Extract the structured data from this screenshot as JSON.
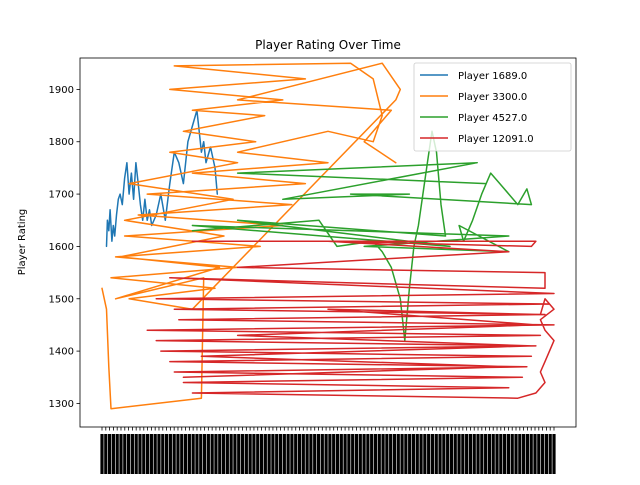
{
  "chart_data": {
    "type": "line",
    "title": "Player Rating Over Time",
    "xlabel": "",
    "ylabel": "Player Rating",
    "ylim": [
      1255,
      1960
    ],
    "yticks": [
      1300,
      1400,
      1500,
      1600,
      1700,
      1800,
      1900
    ],
    "x_tick_labels_legible": false,
    "legend": {
      "location": "upper right"
    },
    "grid": false,
    "series": [
      {
        "name": "Player 1689.0",
        "color": "#1f77b4",
        "points": [
          [
            0.01,
            1600
          ],
          [
            0.012,
            1650
          ],
          [
            0.015,
            1630
          ],
          [
            0.018,
            1670
          ],
          [
            0.022,
            1610
          ],
          [
            0.025,
            1640
          ],
          [
            0.028,
            1620
          ],
          [
            0.032,
            1660
          ],
          [
            0.036,
            1690
          ],
          [
            0.04,
            1700
          ],
          [
            0.045,
            1680
          ],
          [
            0.05,
            1730
          ],
          [
            0.055,
            1760
          ],
          [
            0.06,
            1700
          ],
          [
            0.065,
            1740
          ],
          [
            0.07,
            1690
          ],
          [
            0.075,
            1760
          ],
          [
            0.08,
            1720
          ],
          [
            0.085,
            1680
          ],
          [
            0.09,
            1650
          ],
          [
            0.095,
            1690
          ],
          [
            0.1,
            1650
          ],
          [
            0.105,
            1670
          ],
          [
            0.11,
            1640
          ],
          [
            0.12,
            1660
          ],
          [
            0.13,
            1700
          ],
          [
            0.14,
            1650
          ],
          [
            0.15,
            1720
          ],
          [
            0.16,
            1780
          ],
          [
            0.17,
            1760
          ],
          [
            0.18,
            1720
          ],
          [
            0.19,
            1800
          ],
          [
            0.2,
            1830
          ],
          [
            0.21,
            1860
          ],
          [
            0.215,
            1820
          ],
          [
            0.22,
            1780
          ],
          [
            0.225,
            1800
          ],
          [
            0.23,
            1760
          ],
          [
            0.24,
            1790
          ],
          [
            0.25,
            1750
          ],
          [
            0.255,
            1700
          ]
        ]
      },
      {
        "name": "Player 3300.0",
        "color": "#ff7f0e",
        "points": [
          [
            0.0,
            1520
          ],
          [
            0.01,
            1480
          ],
          [
            0.015,
            1370
          ],
          [
            0.02,
            1290
          ],
          [
            0.22,
            1310
          ],
          [
            0.225,
            1540
          ],
          [
            0.03,
            1500
          ],
          [
            0.26,
            1560
          ],
          [
            0.04,
            1580
          ],
          [
            0.27,
            1620
          ],
          [
            0.05,
            1650
          ],
          [
            0.29,
            1690
          ],
          [
            0.06,
            1720
          ],
          [
            0.3,
            1760
          ],
          [
            0.15,
            1780
          ],
          [
            0.34,
            1800
          ],
          [
            0.18,
            1820
          ],
          [
            0.36,
            1850
          ],
          [
            0.2,
            1860
          ],
          [
            0.4,
            1880
          ],
          [
            0.15,
            1900
          ],
          [
            0.45,
            1920
          ],
          [
            0.16,
            1945
          ],
          [
            0.55,
            1950
          ],
          [
            0.6,
            1920
          ],
          [
            0.62,
            1850
          ],
          [
            0.6,
            1800
          ],
          [
            0.5,
            1820
          ],
          [
            0.3,
            1780
          ],
          [
            0.5,
            1760
          ],
          [
            0.2,
            1740
          ],
          [
            0.45,
            1720
          ],
          [
            0.1,
            1700
          ],
          [
            0.42,
            1680
          ],
          [
            0.08,
            1660
          ],
          [
            0.4,
            1640
          ],
          [
            0.05,
            1620
          ],
          [
            0.35,
            1600
          ],
          [
            0.03,
            1580
          ],
          [
            0.3,
            1560
          ],
          [
            0.02,
            1540
          ],
          [
            0.25,
            1520
          ],
          [
            0.06,
            1500
          ],
          [
            0.2,
            1480
          ],
          [
            0.65,
            1880
          ],
          [
            0.66,
            1900
          ],
          [
            0.62,
            1950
          ],
          [
            0.3,
            1880
          ],
          [
            0.64,
            1860
          ],
          [
            0.58,
            1800
          ],
          [
            0.65,
            1760
          ]
        ]
      },
      {
        "name": "Player 4527.0",
        "color": "#2ca02c",
        "points": [
          [
            0.2,
            1630
          ],
          [
            0.48,
            1650
          ],
          [
            0.52,
            1600
          ],
          [
            0.6,
            1610
          ],
          [
            0.62,
            1590
          ],
          [
            0.64,
            1560
          ],
          [
            0.66,
            1500
          ],
          [
            0.67,
            1420
          ],
          [
            0.68,
            1520
          ],
          [
            0.69,
            1600
          ],
          [
            0.7,
            1640
          ],
          [
            0.71,
            1700
          ],
          [
            0.72,
            1760
          ],
          [
            0.73,
            1820
          ],
          [
            0.74,
            1780
          ],
          [
            0.75,
            1680
          ],
          [
            0.76,
            1620
          ],
          [
            0.3,
            1650
          ],
          [
            0.77,
            1600
          ],
          [
            0.2,
            1640
          ],
          [
            0.9,
            1620
          ],
          [
            0.58,
            1600
          ],
          [
            0.9,
            1590
          ],
          [
            0.79,
            1640
          ],
          [
            0.8,
            1610
          ],
          [
            0.82,
            1650
          ],
          [
            0.84,
            1700
          ],
          [
            0.86,
            1740
          ],
          [
            0.88,
            1720
          ],
          [
            0.9,
            1700
          ],
          [
            0.92,
            1680
          ],
          [
            0.94,
            1710
          ],
          [
            0.95,
            1680
          ],
          [
            0.55,
            1700
          ],
          [
            0.68,
            1700
          ],
          [
            0.4,
            1690
          ],
          [
            0.83,
            1760
          ],
          [
            0.3,
            1740
          ],
          [
            0.85,
            1720
          ]
        ]
      },
      {
        "name": "Player 12091.0",
        "color": "#d62728",
        "points": [
          [
            0.2,
            1610
          ],
          [
            0.96,
            1610
          ],
          [
            0.95,
            1600
          ],
          [
            0.5,
            1610
          ],
          [
            0.9,
            1590
          ],
          [
            0.3,
            1560
          ],
          [
            0.98,
            1550
          ],
          [
            0.98,
            1520
          ],
          [
            0.15,
            1540
          ],
          [
            1.0,
            1510
          ],
          [
            0.12,
            1500
          ],
          [
            0.99,
            1490
          ],
          [
            0.16,
            1480
          ],
          [
            0.98,
            1470
          ],
          [
            0.17,
            1460
          ],
          [
            1.0,
            1450
          ],
          [
            0.1,
            1440
          ],
          [
            0.97,
            1430
          ],
          [
            0.12,
            1420
          ],
          [
            0.96,
            1410
          ],
          [
            0.13,
            1400
          ],
          [
            0.95,
            1390
          ],
          [
            0.15,
            1380
          ],
          [
            0.94,
            1370
          ],
          [
            0.16,
            1360
          ],
          [
            0.93,
            1350
          ],
          [
            0.18,
            1340
          ],
          [
            0.9,
            1330
          ],
          [
            0.2,
            1320
          ],
          [
            0.92,
            1310
          ],
          [
            0.96,
            1320
          ],
          [
            0.98,
            1340
          ],
          [
            0.97,
            1360
          ],
          [
            0.98,
            1380
          ],
          [
            0.99,
            1400
          ],
          [
            1.0,
            1420
          ],
          [
            0.98,
            1440
          ],
          [
            0.97,
            1460
          ],
          [
            1.0,
            1480
          ],
          [
            0.98,
            1500
          ],
          [
            0.97,
            1470
          ],
          [
            0.5,
            1480
          ],
          [
            0.96,
            1450
          ],
          [
            0.3,
            1430
          ],
          [
            0.95,
            1410
          ],
          [
            0.22,
            1390
          ],
          [
            0.9,
            1370
          ],
          [
            0.18,
            1350
          ]
        ]
      }
    ]
  }
}
